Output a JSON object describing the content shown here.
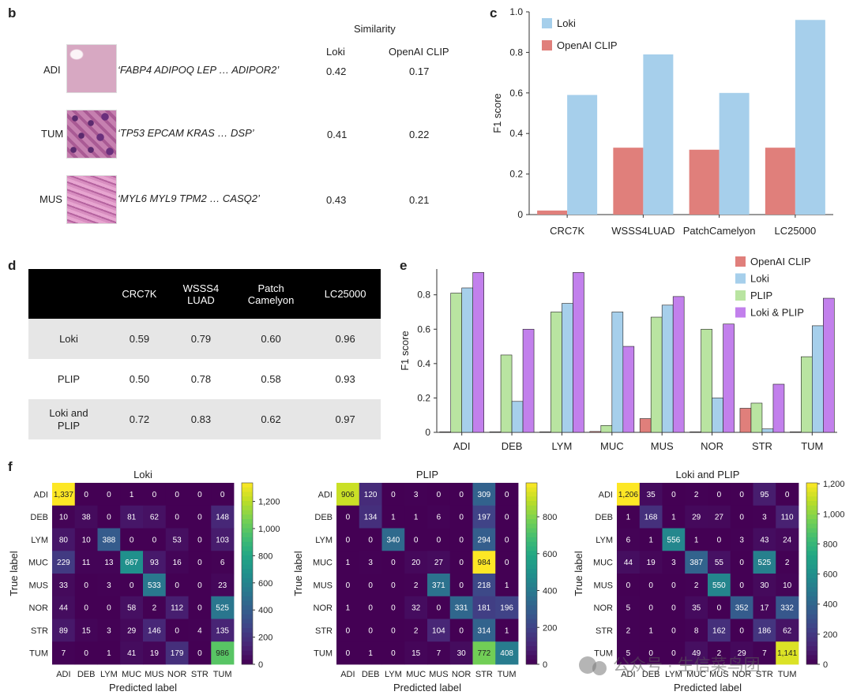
{
  "panel_labels": {
    "b": "b",
    "c": "c",
    "d": "d",
    "e": "e",
    "f": "f"
  },
  "panel_b": {
    "similarity_header": "Similarity",
    "col_loki": "Loki",
    "col_clip": "OpenAI CLIP",
    "rows": [
      {
        "label": "ADI",
        "genes": "‘FABP4 ADIPOQ LEP … ADIPOR2’",
        "loki": "0.42",
        "clip": "0.17"
      },
      {
        "label": "TUM",
        "genes": "‘TP53 EPCAM KRAS … DSP’",
        "loki": "0.41",
        "clip": "0.22"
      },
      {
        "label": "MUS",
        "genes": "‘MYL6 MYL9 TPM2 … CASQ2’",
        "loki": "0.43",
        "clip": "0.21"
      }
    ]
  },
  "panel_d": {
    "headers": [
      "",
      "CRC7K",
      "WSSS4\nLUAD",
      "Patch\nCamelyon",
      "LC25000"
    ],
    "rows": [
      {
        "label": "Loki",
        "values": [
          "0.59",
          "0.79",
          "0.60",
          "0.96"
        ]
      },
      {
        "label": "PLIP",
        "values": [
          "0.50",
          "0.78",
          "0.58",
          "0.93"
        ]
      },
      {
        "label": "Loki and\nPLIP",
        "values": [
          "0.72",
          "0.83",
          "0.62",
          "0.97"
        ]
      }
    ]
  },
  "colors": {
    "clip": "#e07f7b",
    "loki": "#a6cfeb",
    "plip": "#b9e4a1",
    "lokiplip": "#c280ec"
  },
  "watermark": "公众号 · 生信菜鸟团",
  "chart_data": [
    {
      "id": "c",
      "type": "bar",
      "title": "",
      "xlabel": "",
      "ylabel": "F1 score",
      "ylim": [
        0,
        1.0
      ],
      "yticks": [
        "0",
        "0.2",
        "0.4",
        "0.6",
        "0.8",
        "1.0"
      ],
      "categories": [
        "CRC7K",
        "WSSS4LUAD",
        "PatchCamelyon",
        "LC25000"
      ],
      "series": [
        {
          "name": "OpenAI CLIP",
          "color_key": "clip",
          "values": [
            0.02,
            0.33,
            0.32,
            0.33
          ]
        },
        {
          "name": "Loki",
          "color_key": "loki",
          "values": [
            0.59,
            0.79,
            0.6,
            0.96
          ]
        }
      ],
      "legend_order": [
        "Loki",
        "OpenAI CLIP"
      ],
      "legend": "top-left"
    },
    {
      "id": "e",
      "type": "bar",
      "title": "",
      "xlabel": "",
      "ylabel": "F1 score",
      "ylim": [
        0,
        0.95
      ],
      "yticks": [
        "0",
        "0.2",
        "0.4",
        "0.6",
        "0.8"
      ],
      "categories": [
        "ADI",
        "DEB",
        "LYM",
        "MUC",
        "MUS",
        "NOR",
        "STR",
        "TUM"
      ],
      "series": [
        {
          "name": "OpenAI CLIP",
          "color_key": "clip",
          "values": [
            0.0,
            0.0,
            0.0,
            0.005,
            0.08,
            0.0,
            0.14,
            0.0
          ]
        },
        {
          "name": "PLIP",
          "color_key": "plip",
          "values": [
            0.81,
            0.45,
            0.7,
            0.04,
            0.67,
            0.6,
            0.17,
            0.44
          ]
        },
        {
          "name": "Loki",
          "color_key": "loki",
          "values": [
            0.84,
            0.18,
            0.75,
            0.7,
            0.74,
            0.2,
            0.02,
            0.62
          ]
        },
        {
          "name": "Loki & PLIP",
          "color_key": "lokiplip",
          "values": [
            0.93,
            0.6,
            0.93,
            0.5,
            0.79,
            0.63,
            0.28,
            0.78
          ]
        }
      ],
      "legend_order": [
        "OpenAI CLIP",
        "Loki",
        "PLIP",
        "Loki & PLIP"
      ],
      "legend": "top-right"
    },
    {
      "id": "f1",
      "type": "heatmap",
      "title": "Loki",
      "xlabel": "Predicted label",
      "ylabel": "True label",
      "labels": [
        "ADI",
        "DEB",
        "LYM",
        "MUC",
        "MUS",
        "NOR",
        "STR",
        "TUM"
      ],
      "vmax": 1337,
      "colorbar_ticks": [
        [
          0,
          "0"
        ],
        [
          200,
          "200"
        ],
        [
          400,
          "400"
        ],
        [
          600,
          "600"
        ],
        [
          800,
          "800"
        ],
        [
          1000,
          "1,000"
        ],
        [
          1200,
          "1,200"
        ]
      ],
      "matrix": [
        [
          "1,337",
          "0",
          "0",
          "1",
          "0",
          "0",
          "0",
          "0"
        ],
        [
          "10",
          "38",
          "0",
          "81",
          "62",
          "0",
          "0",
          "148"
        ],
        [
          "80",
          "10",
          "388",
          "0",
          "0",
          "53",
          "0",
          "103"
        ],
        [
          "229",
          "11",
          "13",
          "667",
          "93",
          "16",
          "0",
          "6"
        ],
        [
          "33",
          "0",
          "3",
          "0",
          "533",
          "0",
          "0",
          "23"
        ],
        [
          "44",
          "0",
          "0",
          "58",
          "2",
          "112",
          "0",
          "525"
        ],
        [
          "89",
          "15",
          "3",
          "29",
          "146",
          "0",
          "4",
          "135"
        ],
        [
          "7",
          "0",
          "1",
          "41",
          "19",
          "179",
          "0",
          "986"
        ]
      ]
    },
    {
      "id": "f2",
      "type": "heatmap",
      "title": "PLIP",
      "xlabel": "Predicted label",
      "ylabel": "True label",
      "labels": [
        "ADI",
        "DEB",
        "LYM",
        "MUC",
        "MUS",
        "NOR",
        "STR",
        "TUM"
      ],
      "vmax": 984,
      "colorbar_ticks": [
        [
          0,
          "0"
        ],
        [
          200,
          "200"
        ],
        [
          400,
          "400"
        ],
        [
          600,
          "600"
        ],
        [
          800,
          "800"
        ]
      ],
      "matrix": [
        [
          "906",
          "120",
          "0",
          "3",
          "0",
          "0",
          "309",
          "0"
        ],
        [
          "0",
          "134",
          "1",
          "1",
          "6",
          "0",
          "197",
          "0"
        ],
        [
          "0",
          "0",
          "340",
          "0",
          "0",
          "0",
          "294",
          "0"
        ],
        [
          "1",
          "3",
          "0",
          "20",
          "27",
          "0",
          "984",
          "0"
        ],
        [
          "0",
          "0",
          "0",
          "2",
          "371",
          "0",
          "218",
          "1"
        ],
        [
          "1",
          "0",
          "0",
          "32",
          "0",
          "331",
          "181",
          "196"
        ],
        [
          "0",
          "0",
          "0",
          "2",
          "104",
          "0",
          "314",
          "1"
        ],
        [
          "0",
          "1",
          "0",
          "15",
          "7",
          "30",
          "772",
          "408"
        ]
      ]
    },
    {
      "id": "f3",
      "type": "heatmap",
      "title": "Loki and PLIP",
      "xlabel": "Predicted label",
      "ylabel": "True label",
      "labels": [
        "ADI",
        "DEB",
        "LYM",
        "MUC",
        "MUS",
        "NOR",
        "STR",
        "TUM"
      ],
      "vmax": 1206,
      "colorbar_ticks": [
        [
          0,
          "0"
        ],
        [
          200,
          "200"
        ],
        [
          400,
          "400"
        ],
        [
          600,
          "600"
        ],
        [
          800,
          "800"
        ],
        [
          1000,
          "1,000"
        ],
        [
          1200,
          "1,200"
        ]
      ],
      "matrix": [
        [
          "1,206",
          "35",
          "0",
          "2",
          "0",
          "0",
          "95",
          "0"
        ],
        [
          "1",
          "168",
          "1",
          "29",
          "27",
          "0",
          "3",
          "110"
        ],
        [
          "6",
          "1",
          "556",
          "1",
          "0",
          "3",
          "43",
          "24"
        ],
        [
          "44",
          "19",
          "3",
          "387",
          "55",
          "0",
          "525",
          "2"
        ],
        [
          "0",
          "0",
          "0",
          "2",
          "550",
          "0",
          "30",
          "10"
        ],
        [
          "5",
          "0",
          "0",
          "35",
          "0",
          "352",
          "17",
          "332"
        ],
        [
          "2",
          "1",
          "0",
          "8",
          "162",
          "0",
          "186",
          "62"
        ],
        [
          "5",
          "0",
          "0",
          "49",
          "2",
          "29",
          "7",
          "1,141"
        ]
      ]
    }
  ]
}
